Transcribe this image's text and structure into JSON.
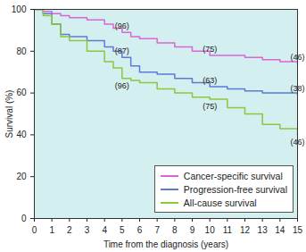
{
  "chart_data": {
    "type": "line",
    "x_label": "Time from the diagnosis (years)",
    "y_label": "Survival (%)",
    "xlim": [
      0,
      15
    ],
    "ylim": [
      0,
      100
    ],
    "xticks": [
      0,
      1,
      2,
      3,
      4,
      5,
      6,
      7,
      8,
      9,
      10,
      11,
      12,
      13,
      14,
      15
    ],
    "yticks": [
      0,
      20,
      40,
      60,
      80,
      100
    ],
    "line_style": "step",
    "legend": "lower right",
    "x": [
      0,
      0.5,
      1,
      1.5,
      2,
      3,
      4,
      4.5,
      5,
      5.5,
      6,
      7,
      8,
      9,
      10,
      11,
      12,
      13,
      14,
      15
    ],
    "series": [
      {
        "name": "Cancer-specific survival",
        "color": "#d966d6",
        "values": [
          100,
          99,
          98,
          97,
          96,
          95,
          93,
          91,
          89,
          87,
          86,
          84,
          82,
          80,
          78,
          78,
          77,
          76,
          75,
          74
        ],
        "at_risk": [
          {
            "x": 5,
            "label": "(96)"
          },
          {
            "x": 10,
            "label": "(75)"
          },
          {
            "x": 15,
            "label": "(46)"
          }
        ]
      },
      {
        "name": "Progression-free survival",
        "color": "#5b7bd5",
        "values": [
          100,
          98,
          93,
          88,
          87,
          85,
          82,
          80,
          77,
          73,
          70,
          69,
          67,
          65,
          63,
          62,
          61,
          60,
          60,
          59
        ],
        "at_risk": [
          {
            "x": 5,
            "label": "(87)"
          },
          {
            "x": 10,
            "label": "(63)"
          },
          {
            "x": 15,
            "label": "(38)"
          }
        ]
      },
      {
        "name": "All-cause survival",
        "color": "#8dc63f",
        "values": [
          100,
          97,
          93,
          87,
          85,
          80,
          75,
          72,
          67,
          66,
          65,
          62,
          60,
          58,
          57,
          53,
          50,
          45,
          43,
          40
        ],
        "at_risk": [
          {
            "x": 5,
            "label": "(96)"
          },
          {
            "x": 10,
            "label": "(75)"
          },
          {
            "x": 15,
            "label": "(46)"
          }
        ]
      }
    ]
  }
}
